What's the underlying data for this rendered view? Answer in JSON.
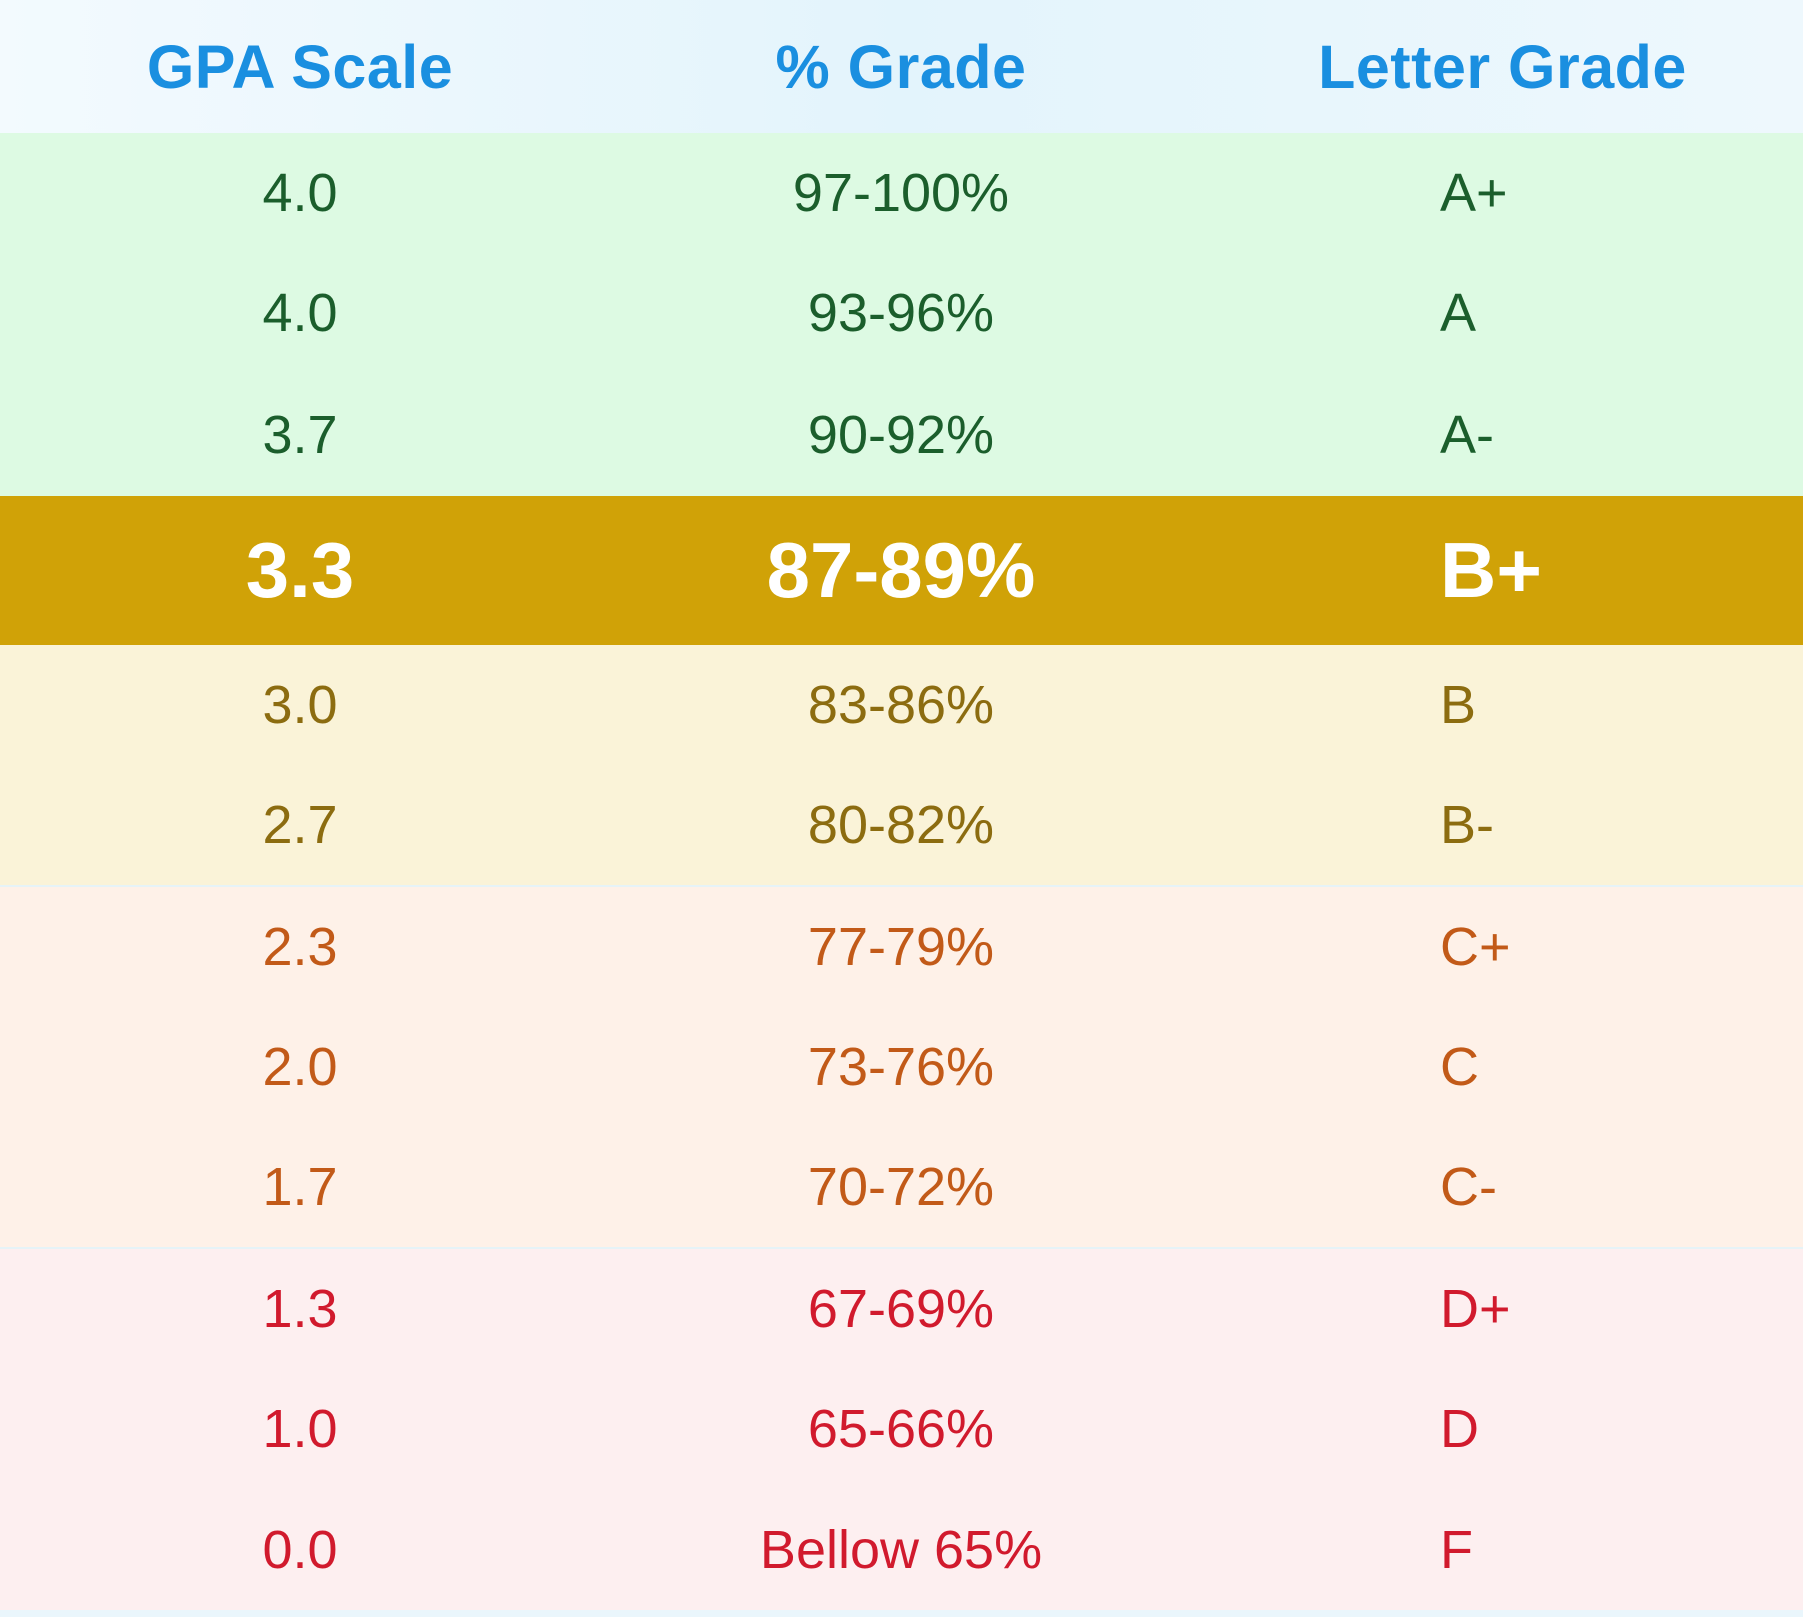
{
  "table": {
    "headers": {
      "gpa": "GPA Scale",
      "percent": "% Grade",
      "letter": "Letter Grade"
    },
    "rows": [
      {
        "gpa": "4.0",
        "percent": "97-100%",
        "letter": "A+",
        "band": "green"
      },
      {
        "gpa": "4.0",
        "percent": "93-96%",
        "letter": "A",
        "band": "green"
      },
      {
        "gpa": "3.7",
        "percent": "90-92%",
        "letter": "A-",
        "band": "green"
      },
      {
        "gpa": "3.3",
        "percent": "87-89%",
        "letter": "B+",
        "band": "gold",
        "highlighted": true
      },
      {
        "gpa": "3.0",
        "percent": "83-86%",
        "letter": "B",
        "band": "yellow"
      },
      {
        "gpa": "2.7",
        "percent": "80-82%",
        "letter": "B-",
        "band": "yellow"
      },
      {
        "gpa": "2.3",
        "percent": "77-79%",
        "letter": "C+",
        "band": "orange"
      },
      {
        "gpa": "2.0",
        "percent": "73-76%",
        "letter": "C",
        "band": "orange"
      },
      {
        "gpa": "1.7",
        "percent": "70-72%",
        "letter": "C-",
        "band": "orange"
      },
      {
        "gpa": "1.3",
        "percent": "67-69%",
        "letter": "D+",
        "band": "red"
      },
      {
        "gpa": "1.0",
        "percent": "65-66%",
        "letter": "D",
        "band": "red"
      },
      {
        "gpa": "0.0",
        "percent": "Bellow 65%",
        "letter": "F",
        "band": "red"
      }
    ]
  },
  "colors": {
    "header_text": "#1a8fe0",
    "green_band": "#ddfae3",
    "green_text": "#1b5e2c",
    "highlight_band": "#d0a207",
    "highlight_text": "#ffffff",
    "yellow_band": "#faf3d8",
    "yellow_text": "#8c6c10",
    "orange_band": "#fef1e8",
    "orange_text": "#c25a18",
    "red_band": "#fdeff0",
    "red_text": "#d11a2d"
  }
}
